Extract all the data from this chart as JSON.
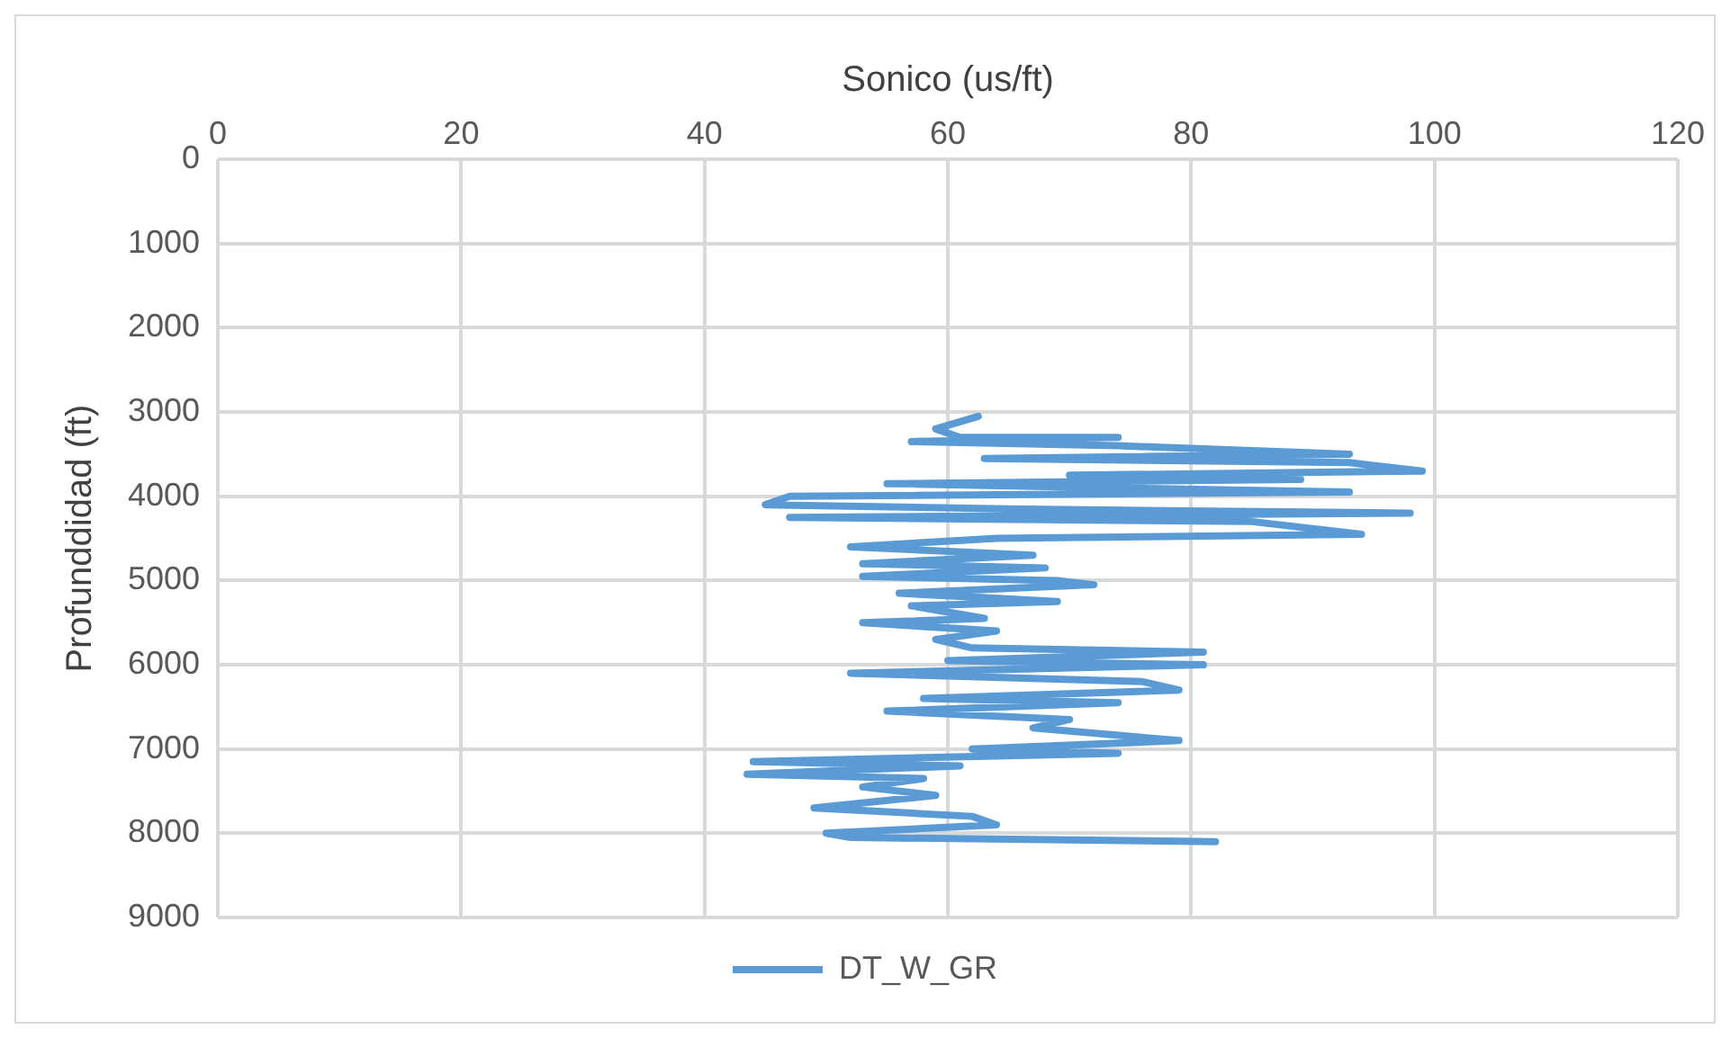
{
  "chart_data": {
    "type": "line",
    "xlabel": "Sonico (us/ft)",
    "ylabel": "Profunddidad (ft)",
    "xlim": [
      0,
      120
    ],
    "xticks": [
      0,
      20,
      40,
      60,
      80,
      100,
      120
    ],
    "ylim": [
      9000,
      0
    ],
    "yticks": [
      0,
      1000,
      2000,
      3000,
      4000,
      5000,
      6000,
      7000,
      8000,
      9000
    ],
    "grid": true,
    "legend": "bottom",
    "marker": "none",
    "line_style": "solid",
    "series": [
      {
        "name": "DT_W_GR",
        "color": "#5b9bd5",
        "x": [
          62.5,
          59,
          61,
          74,
          57,
          74,
          93,
          63,
          93,
          99,
          70,
          89,
          55,
          93,
          47,
          45,
          65,
          98,
          47,
          85,
          94,
          64,
          52,
          67,
          53,
          68,
          53,
          69,
          72,
          56,
          69,
          57,
          63,
          53,
          64,
          59,
          62,
          81,
          60,
          81,
          52,
          76,
          79,
          58,
          74,
          55,
          70,
          67,
          79,
          62,
          74,
          44,
          61,
          43.5,
          58,
          53,
          59,
          49,
          62,
          64,
          50,
          52,
          82
        ],
        "values": [
          3050,
          3200,
          3300,
          3300,
          3350,
          3400,
          3500,
          3550,
          3600,
          3700,
          3750,
          3800,
          3850,
          3950,
          4000,
          4100,
          4150,
          4200,
          4250,
          4300,
          4450,
          4500,
          4600,
          4700,
          4800,
          4850,
          4950,
          5000,
          5050,
          5150,
          5250,
          5300,
          5450,
          5500,
          5600,
          5700,
          5800,
          5850,
          5950,
          6000,
          6100,
          6200,
          6300,
          6400,
          6450,
          6550,
          6650,
          6750,
          6900,
          7000,
          7050,
          7150,
          7200,
          7300,
          7350,
          7450,
          7550,
          7700,
          7800,
          7900,
          8000,
          8050,
          8100
        ]
      }
    ]
  }
}
